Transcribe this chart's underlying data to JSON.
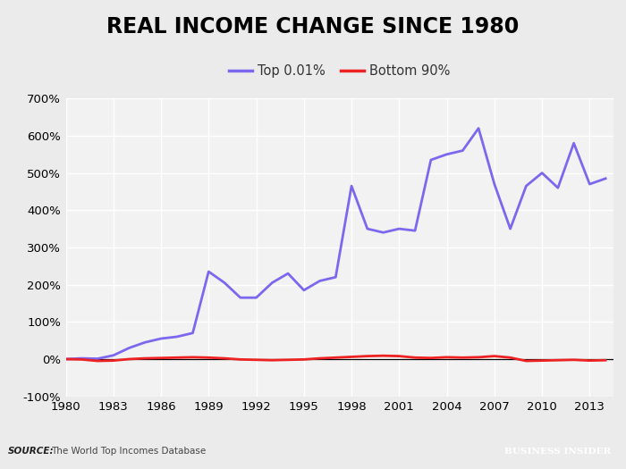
{
  "title": "REAL INCOME CHANGE SINCE 1980",
  "source_label": "SOURCE:",
  "source_text": "The World Top Incomes Database",
  "bi_label": "BUSINESS INSIDER",
  "legend_entries": [
    "Top 0.01%",
    "Bottom 90%"
  ],
  "top001_color": "#7B68EE",
  "bottom90_color": "#EE2222",
  "background_color": "#EBEBEB",
  "plot_bg_color": "#F2F2F2",
  "footer_bg_color": "#CCCCCC",
  "bi_bg_color": "#2D5F7A",
  "ylim": [
    -1.0,
    7.0
  ],
  "yticks": [
    -1.0,
    0.0,
    1.0,
    2.0,
    3.0,
    4.0,
    5.0,
    6.0,
    7.0
  ],
  "ytick_labels": [
    "-100%",
    "0%",
    "100%",
    "200%",
    "300%",
    "400%",
    "500%",
    "600%",
    "700%"
  ],
  "xlim": [
    1980,
    2014.5
  ],
  "xticks": [
    1980,
    1983,
    1986,
    1989,
    1992,
    1995,
    1998,
    2001,
    2004,
    2007,
    2010,
    2013
  ],
  "top001_years": [
    1980,
    1981,
    1982,
    1983,
    1984,
    1985,
    1986,
    1987,
    1988,
    1989,
    1990,
    1991,
    1992,
    1993,
    1994,
    1995,
    1996,
    1997,
    1998,
    1999,
    2000,
    2001,
    2002,
    2003,
    2004,
    2005,
    2006,
    2007,
    2008,
    2009,
    2010,
    2011,
    2012,
    2013,
    2014
  ],
  "top001_values": [
    0.0,
    0.02,
    0.01,
    0.1,
    0.3,
    0.45,
    0.55,
    0.6,
    0.7,
    2.35,
    2.05,
    1.65,
    1.65,
    2.05,
    2.3,
    1.85,
    2.1,
    2.2,
    4.65,
    3.5,
    3.4,
    3.5,
    3.45,
    5.35,
    5.5,
    5.6,
    6.2,
    4.7,
    3.5,
    4.65,
    5.0,
    4.6,
    5.8,
    4.7,
    4.85
  ],
  "bottom90_years": [
    1980,
    1981,
    1982,
    1983,
    1984,
    1985,
    1986,
    1987,
    1988,
    1989,
    1990,
    1991,
    1992,
    1993,
    1994,
    1995,
    1996,
    1997,
    1998,
    1999,
    2000,
    2001,
    2002,
    2003,
    2004,
    2005,
    2006,
    2007,
    2008,
    2009,
    2010,
    2011,
    2012,
    2013,
    2014
  ],
  "bottom90_values": [
    0.0,
    -0.01,
    -0.05,
    -0.04,
    0.0,
    0.02,
    0.03,
    0.04,
    0.05,
    0.04,
    0.02,
    -0.01,
    -0.02,
    -0.03,
    -0.02,
    -0.01,
    0.02,
    0.04,
    0.06,
    0.08,
    0.09,
    0.08,
    0.04,
    0.03,
    0.05,
    0.04,
    0.05,
    0.08,
    0.04,
    -0.05,
    -0.04,
    -0.03,
    -0.02,
    -0.04,
    -0.03
  ]
}
